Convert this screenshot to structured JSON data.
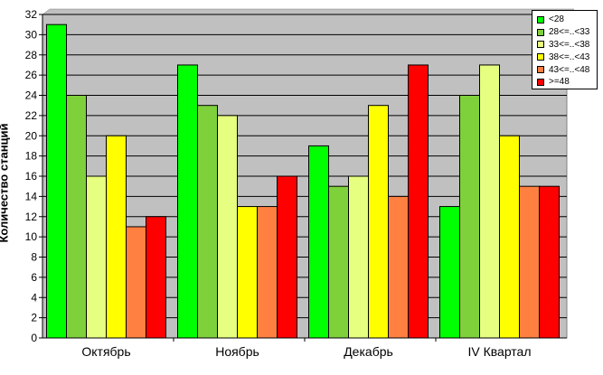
{
  "chart_data": {
    "type": "bar",
    "categories": [
      "Октябрь",
      "Ноябрь",
      "Декабрь",
      "IV Квартал"
    ],
    "series": [
      {
        "name": "<28",
        "color": "#00ff00",
        "values": [
          31,
          27,
          19,
          13
        ]
      },
      {
        "name": "28<=..<33",
        "color": "#7fd13b",
        "values": [
          24,
          23,
          15,
          24
        ]
      },
      {
        "name": "33<=..<38",
        "color": "#e6ff80",
        "values": [
          16,
          22,
          16,
          27
        ]
      },
      {
        "name": "38<=..<43",
        "color": "#ffff00",
        "values": [
          20,
          13,
          23,
          20
        ]
      },
      {
        "name": "43<=..<48",
        "color": "#ff8040",
        "values": [
          11,
          13,
          14,
          15
        ]
      },
      {
        "name": ">=48",
        "color": "#ff0000",
        "values": [
          12,
          16,
          27,
          15
        ]
      }
    ],
    "title": "",
    "xlabel": "",
    "ylabel": "Количество станций",
    "ylim": [
      0,
      32
    ],
    "yticks": [
      0,
      2,
      4,
      6,
      8,
      10,
      12,
      14,
      16,
      18,
      20,
      22,
      24,
      26,
      28,
      30,
      32
    ],
    "grid": true,
    "legend_position": "top-right",
    "plot_background": "#c0c0c0"
  }
}
